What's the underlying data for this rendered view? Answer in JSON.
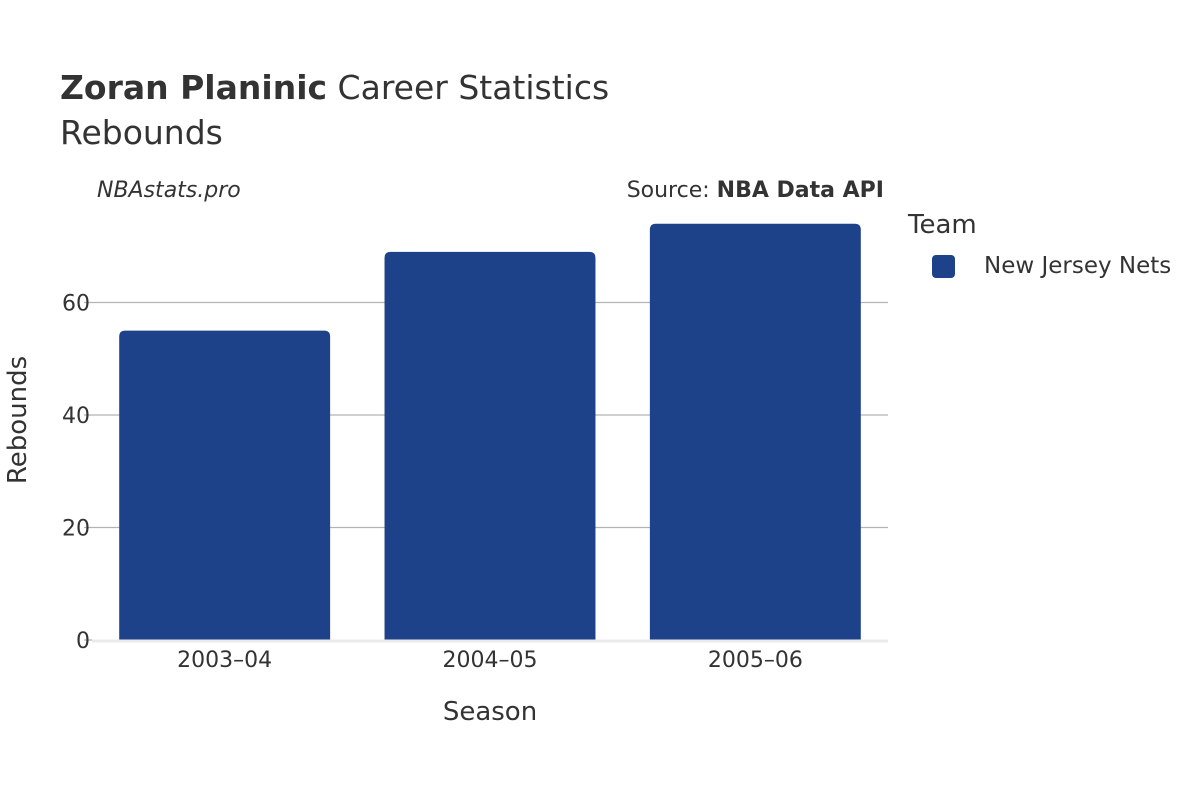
{
  "header": {
    "title_bold": "Zoran Planinic",
    "title_rest": " Career Statistics",
    "subtitle": "Rebounds"
  },
  "credit": "NBAstats.pro",
  "source": {
    "prefix": "Source: ",
    "name": "NBA Data API"
  },
  "legend": {
    "title": "Team",
    "items": [
      {
        "label": "New Jersey Nets",
        "color": "#1d4289"
      }
    ]
  },
  "chart_data": {
    "type": "bar",
    "categories": [
      "2003–04",
      "2004–05",
      "2005–06"
    ],
    "series": [
      {
        "name": "New Jersey Nets",
        "values": [
          55,
          69,
          74
        ],
        "color": "#1d4289"
      }
    ],
    "xlabel": "Season",
    "ylabel": "Rebounds",
    "ylim": [
      0,
      80
    ],
    "yticks": [
      0,
      20,
      40,
      60
    ],
    "grid": true,
    "legend_position": "right"
  }
}
